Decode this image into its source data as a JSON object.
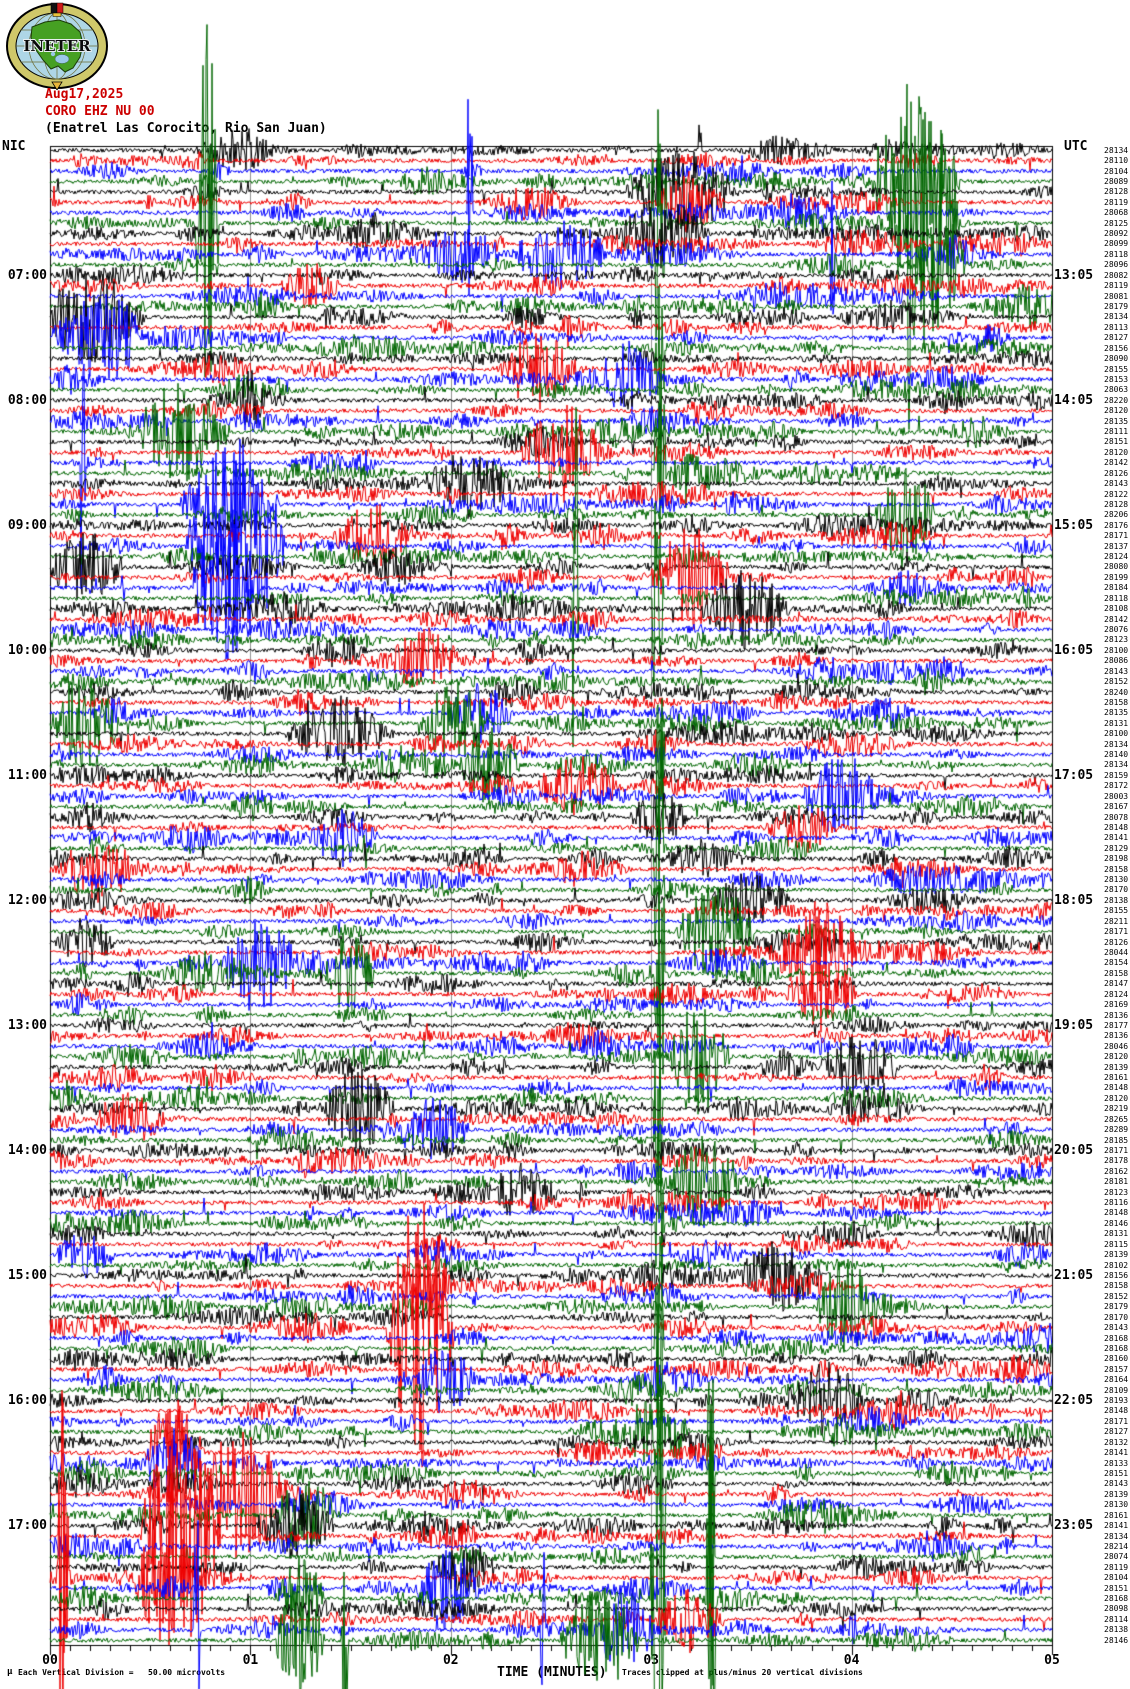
{
  "header": {
    "logo_text": "INETER",
    "date": "Aug17,2025",
    "station": "CORO EHZ NU 00",
    "location": "(Enatrel Las Corocito, Rio San Juan)",
    "left_timezone_label": "NIC",
    "right_timezone_label": "UTC"
  },
  "x_axis": {
    "title": "TIME (MINUTES)",
    "minute_labels": [
      "00",
      "01",
      "02",
      "03",
      "04",
      "05"
    ]
  },
  "footer": {
    "micro_symbol": "µ",
    "scale_note": "Each Vertical Division =   50.00 microvolts",
    "clip_note": "Traces clipped at plus/minus 20 vertical divisions"
  },
  "chart_data": {
    "type": "line",
    "variant": "helicorder_seismogram",
    "rows": 144,
    "minutes_per_row": 5,
    "x_range_minutes": [
      0,
      5
    ],
    "trace_color_cycle": [
      "#000000",
      "#ee0000",
      "#0000ff",
      "#006600"
    ],
    "grid_color": "#909090",
    "hour_row_interval": 12,
    "first_hour_row": 12,
    "nic_hour_labels": [
      "07:00",
      "08:00",
      "09:00",
      "10:00",
      "11:00",
      "12:00",
      "13:00",
      "14:00",
      "15:00",
      "16:00",
      "17:00"
    ],
    "utc_hour_labels": [
      "13:05",
      "14:05",
      "15:05",
      "16:05",
      "17:05",
      "18:05",
      "19:05",
      "20:05",
      "21:05",
      "22:05",
      "23:05"
    ],
    "scale_microvolts_per_division": "50.00",
    "clip_divisions": 20,
    "right_column_values": [
      28134,
      28110,
      28104,
      28089,
      28128,
      28119,
      28068,
      28125,
      28092,
      28099,
      28118,
      28096,
      28082,
      28119,
      28081,
      28179,
      28134,
      28113,
      28127,
      28156,
      28090,
      28155,
      28153,
      28063,
      28220,
      28120,
      28135,
      28111,
      28151,
      28120,
      28142,
      28126,
      28143,
      28122,
      28128,
      28206,
      28176,
      28171,
      28137,
      28124,
      28080,
      28199,
      28184,
      28118,
      28108,
      28142,
      28076,
      28123,
      28100,
      28086,
      28143,
      28152,
      28240,
      28158,
      28135,
      28131,
      28100,
      28134,
      28140,
      28134,
      28159,
      28172,
      28003,
      28167,
      28078,
      28148,
      28141,
      28129,
      28198,
      28158,
      28130,
      28170,
      28138,
      28155,
      28211,
      28171,
      28126,
      28044,
      28154,
      28158,
      28147,
      28124,
      28169,
      28136,
      28177,
      28136,
      28046,
      28120,
      28139,
      28161,
      28148,
      28120,
      28219,
      28265,
      28289,
      28185,
      28171,
      28178,
      28162,
      28181,
      28123,
      28116,
      28148,
      28146,
      28131,
      28115,
      28139,
      28102,
      28156,
      28158,
      28152,
      28179,
      28170,
      28143,
      28168,
      28168,
      28160,
      28157,
      28164,
      28109,
      28193,
      28148,
      28171,
      28127,
      28132,
      28141,
      28133,
      28151,
      28143,
      28139,
      28130,
      28161,
      28141,
      28134,
      28214,
      28074,
      28119,
      28104,
      28151,
      28168,
      28098,
      28114,
      28138,
      28146
    ],
    "events_note": "approximate burst locations [row, x_px, half_width_px, amplitude_px]",
    "events": [
      [
        0,
        700,
        2,
        90
      ],
      [
        4,
        680,
        55,
        45
      ],
      [
        8,
        665,
        45,
        35
      ],
      [
        16,
        100,
        45,
        40
      ],
      [
        32,
        470,
        45,
        28
      ],
      [
        40,
        85,
        40,
        35
      ],
      [
        44,
        745,
        45,
        40
      ],
      [
        56,
        340,
        55,
        30
      ],
      [
        64,
        660,
        30,
        28
      ],
      [
        72,
        750,
        40,
        30
      ],
      [
        76,
        85,
        30,
        25
      ],
      [
        88,
        860,
        40,
        35
      ],
      [
        92,
        360,
        35,
        45
      ],
      [
        100,
        520,
        40,
        25
      ],
      [
        108,
        780,
        40,
        32
      ],
      [
        120,
        825,
        40,
        35
      ],
      [
        132,
        295,
        40,
        35
      ],
      [
        136,
        465,
        35,
        28
      ],
      [
        5,
        690,
        35,
        30
      ],
      [
        13,
        310,
        30,
        25
      ],
      [
        21,
        540,
        40,
        35
      ],
      [
        29,
        560,
        40,
        45
      ],
      [
        37,
        375,
        40,
        30
      ],
      [
        41,
        690,
        40,
        50
      ],
      [
        49,
        425,
        35,
        28
      ],
      [
        61,
        575,
        40,
        28
      ],
      [
        69,
        95,
        35,
        22
      ],
      [
        77,
        815,
        40,
        40
      ],
      [
        81,
        820,
        35,
        30
      ],
      [
        93,
        130,
        35,
        28
      ],
      [
        109,
        425,
        25,
        40
      ],
      [
        113,
        420,
        35,
        140
      ],
      [
        125,
        175,
        30,
        60
      ],
      [
        129,
        235,
        45,
        60
      ],
      [
        133,
        180,
        40,
        130
      ],
      [
        133,
        63,
        5,
        200
      ],
      [
        137,
        165,
        30,
        60
      ],
      [
        137,
        63,
        6,
        220
      ],
      [
        141,
        63,
        4,
        120
      ],
      [
        141,
        690,
        35,
        30
      ],
      [
        2,
        470,
        2,
        60
      ],
      [
        6,
        470,
        3,
        220
      ],
      [
        10,
        560,
        45,
        35
      ],
      [
        10,
        460,
        40,
        30
      ],
      [
        10,
        832,
        3,
        120
      ],
      [
        18,
        95,
        45,
        40
      ],
      [
        22,
        630,
        30,
        28
      ],
      [
        30,
        83,
        3,
        260
      ],
      [
        34,
        230,
        50,
        60
      ],
      [
        38,
        235,
        50,
        110
      ],
      [
        42,
        225,
        35,
        80
      ],
      [
        54,
        480,
        35,
        30
      ],
      [
        62,
        840,
        40,
        45
      ],
      [
        66,
        345,
        35,
        28
      ],
      [
        78,
        258,
        35,
        55
      ],
      [
        94,
        435,
        35,
        32
      ],
      [
        106,
        85,
        30,
        25
      ],
      [
        118,
        445,
        30,
        32
      ],
      [
        126,
        175,
        30,
        38
      ],
      [
        138,
        445,
        30,
        32
      ],
      [
        142,
        197,
        4,
        160
      ],
      [
        142,
        625,
        30,
        45
      ],
      [
        142,
        543,
        3,
        90
      ],
      [
        3,
        207,
        6,
        60
      ],
      [
        3,
        915,
        45,
        90
      ],
      [
        7,
        207,
        12,
        220
      ],
      [
        7,
        659,
        8,
        170
      ],
      [
        7,
        908,
        4,
        160
      ],
      [
        7,
        925,
        35,
        130
      ],
      [
        11,
        940,
        25,
        60
      ],
      [
        19,
        659,
        6,
        120
      ],
      [
        27,
        185,
        45,
        50
      ],
      [
        31,
        660,
        6,
        150
      ],
      [
        35,
        905,
        30,
        60
      ],
      [
        43,
        658,
        6,
        200
      ],
      [
        43,
        575,
        4,
        250
      ],
      [
        55,
        455,
        35,
        45
      ],
      [
        55,
        85,
        35,
        45
      ],
      [
        59,
        490,
        30,
        40
      ],
      [
        59,
        660,
        5,
        120
      ],
      [
        67,
        659,
        6,
        180
      ],
      [
        75,
        715,
        40,
        50
      ],
      [
        79,
        660,
        6,
        150
      ],
      [
        79,
        350,
        25,
        45
      ],
      [
        87,
        700,
        30,
        60
      ],
      [
        91,
        658,
        5,
        200
      ],
      [
        99,
        705,
        35,
        45
      ],
      [
        103,
        660,
        5,
        150
      ],
      [
        111,
        845,
        30,
        50
      ],
      [
        115,
        659,
        5,
        180
      ],
      [
        123,
        660,
        30,
        40
      ],
      [
        127,
        660,
        6,
        250
      ],
      [
        127,
        711,
        4,
        200
      ],
      [
        131,
        305,
        30,
        45
      ],
      [
        135,
        711,
        4,
        200
      ],
      [
        139,
        658,
        8,
        300
      ],
      [
        139,
        300,
        25,
        45
      ],
      [
        139,
        711,
        5,
        280
      ],
      [
        143,
        600,
        40,
        55
      ],
      [
        143,
        345,
        4,
        120
      ],
      [
        143,
        300,
        25,
        60
      ]
    ],
    "seed": 20250817
  }
}
